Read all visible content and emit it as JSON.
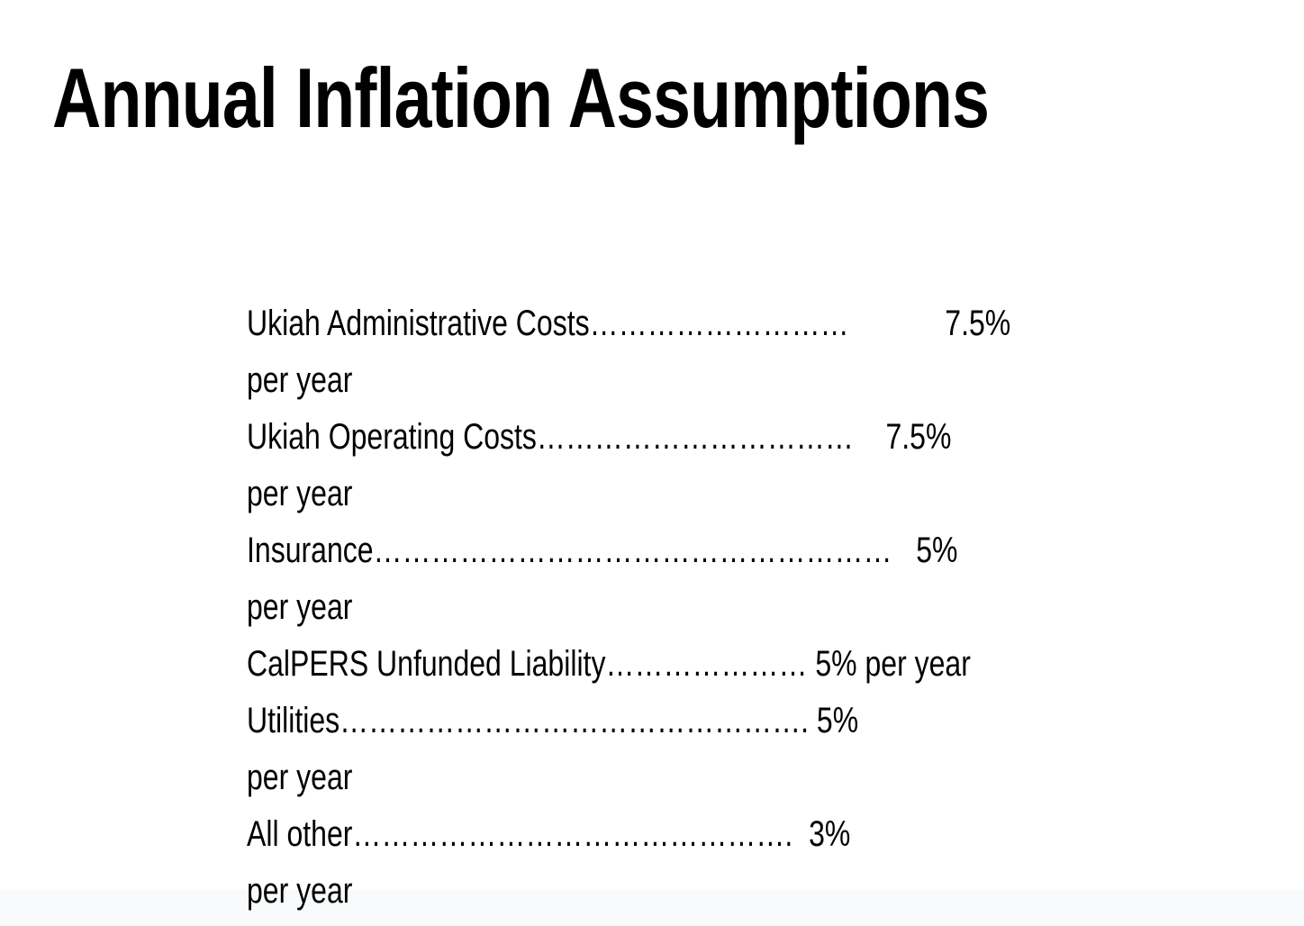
{
  "slide": {
    "title": "Annual Inflation Assumptions",
    "body_lines": [
      "Ukiah Administrative Costs………………………            7.5%",
      "per year",
      "Ukiah Operating Costs……………………………    7.5%",
      "per year",
      "Insurance………………………………………………   5%",
      "per year",
      "CalPERS Unfunded Liability………………… 5% per year",
      "Utilities…………………………………………. 5%",
      "per year",
      "All other……………………………………….  3%",
      "per year"
    ]
  },
  "assumptions": [
    {
      "item": "Ukiah Administrative Costs",
      "rate": "7.5%",
      "period": "per year"
    },
    {
      "item": "Ukiah Operating Costs",
      "rate": "7.5%",
      "period": "per year"
    },
    {
      "item": "Insurance",
      "rate": "5%",
      "period": "per year"
    },
    {
      "item": "CalPERS Unfunded Liability",
      "rate": "5%",
      "period": "per year"
    },
    {
      "item": "Utilities",
      "rate": "5%",
      "period": "per year"
    },
    {
      "item": "All other",
      "rate": "3%",
      "period": "per year"
    }
  ],
  "colors": {
    "background": "#ffffff",
    "text": "#000000",
    "footer_band": "#f8fafc"
  }
}
